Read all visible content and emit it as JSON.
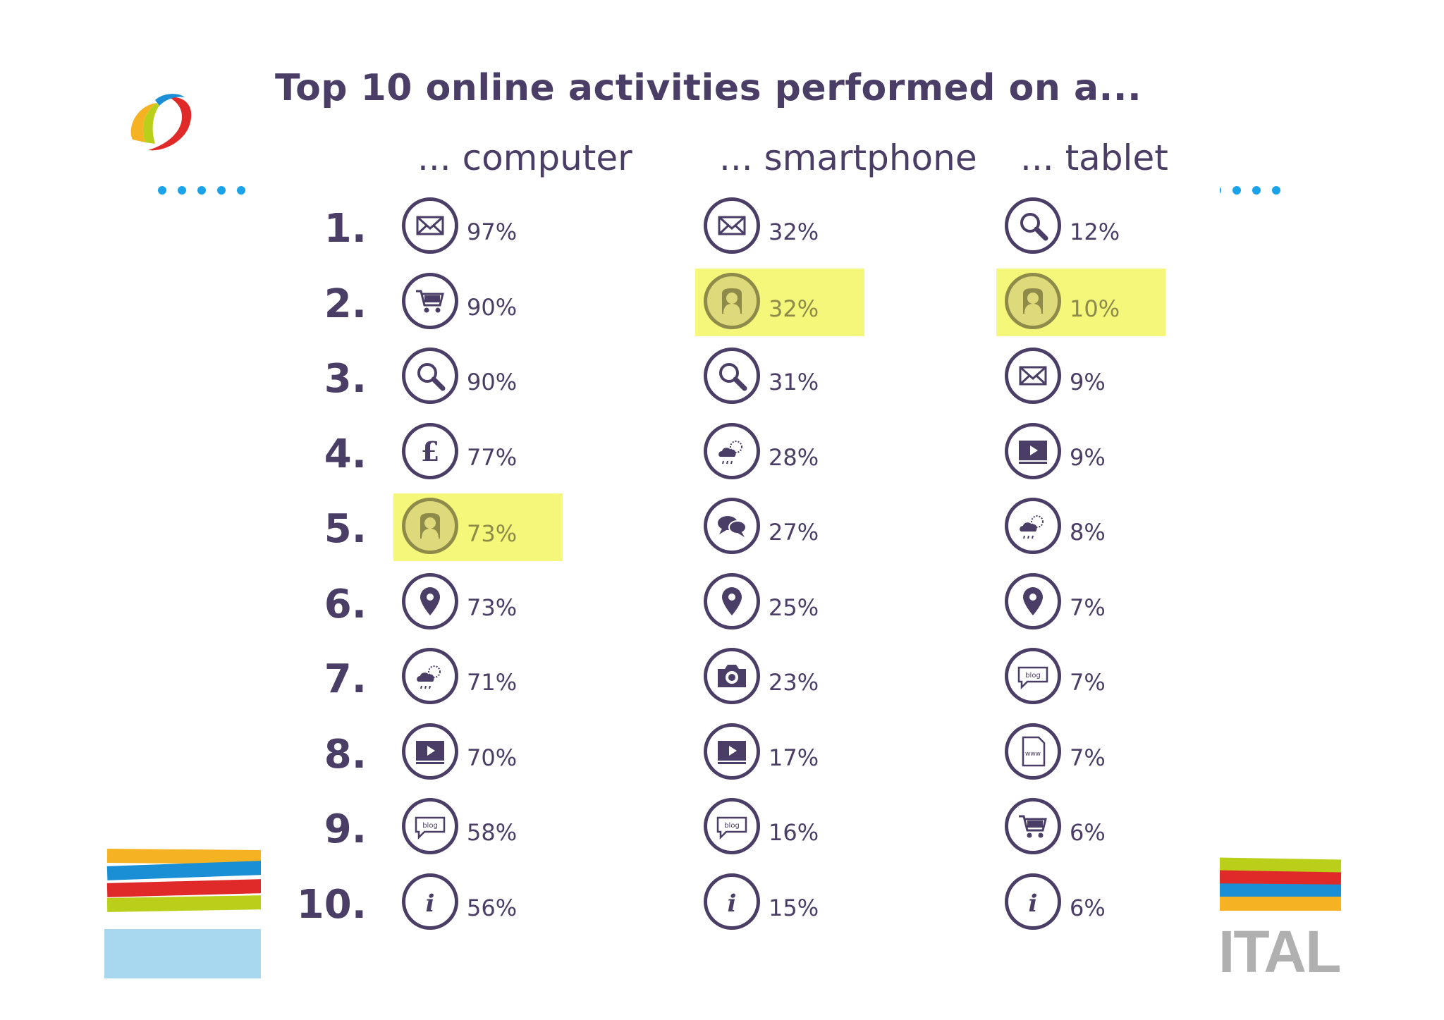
{
  "title": "Top 10 online activities performed on a...",
  "columns": [
    {
      "heading": "... computer",
      "items": [
        {
          "icon": "envelope-icon",
          "percent": "97%",
          "highlight": false
        },
        {
          "icon": "shopping-cart-icon",
          "percent": "90%",
          "highlight": false
        },
        {
          "icon": "magnifier-icon",
          "percent": "90%",
          "highlight": false
        },
        {
          "icon": "pound-sign-icon",
          "percent": "77%",
          "highlight": false
        },
        {
          "icon": "person-silhouette-icon",
          "percent": "73%",
          "highlight": true
        },
        {
          "icon": "map-pin-icon",
          "percent": "73%",
          "highlight": false
        },
        {
          "icon": "weather-icon",
          "percent": "71%",
          "highlight": false
        },
        {
          "icon": "video-play-icon",
          "percent": "70%",
          "highlight": false
        },
        {
          "icon": "blog-icon",
          "percent": "58%",
          "highlight": false
        },
        {
          "icon": "info-icon",
          "percent": "56%",
          "highlight": false
        }
      ]
    },
    {
      "heading": "... smartphone",
      "items": [
        {
          "icon": "envelope-icon",
          "percent": "32%",
          "highlight": false
        },
        {
          "icon": "person-silhouette-icon",
          "percent": "32%",
          "highlight": true
        },
        {
          "icon": "magnifier-icon",
          "percent": "31%",
          "highlight": false
        },
        {
          "icon": "weather-icon",
          "percent": "28%",
          "highlight": false
        },
        {
          "icon": "speech-bubbles-icon",
          "percent": "27%",
          "highlight": false
        },
        {
          "icon": "map-pin-icon",
          "percent": "25%",
          "highlight": false
        },
        {
          "icon": "camera-icon",
          "percent": "23%",
          "highlight": false
        },
        {
          "icon": "video-play-icon",
          "percent": "17%",
          "highlight": false
        },
        {
          "icon": "blog-icon",
          "percent": "16%",
          "highlight": false
        },
        {
          "icon": "info-icon",
          "percent": "15%",
          "highlight": false
        }
      ]
    },
    {
      "heading": "... tablet",
      "items": [
        {
          "icon": "magnifier-icon",
          "percent": "12%",
          "highlight": false
        },
        {
          "icon": "person-silhouette-icon",
          "percent": "10%",
          "highlight": true
        },
        {
          "icon": "envelope-icon",
          "percent": "9%",
          "highlight": false
        },
        {
          "icon": "video-play-icon",
          "percent": "9%",
          "highlight": false
        },
        {
          "icon": "weather-icon",
          "percent": "8%",
          "highlight": false
        },
        {
          "icon": "map-pin-icon",
          "percent": "7%",
          "highlight": false
        },
        {
          "icon": "blog-icon",
          "percent": "7%",
          "highlight": false
        },
        {
          "icon": "www-page-icon",
          "percent": "7%",
          "highlight": false
        },
        {
          "icon": "shopping-cart-icon",
          "percent": "6%",
          "highlight": false
        },
        {
          "icon": "info-icon",
          "percent": "6%",
          "highlight": false
        }
      ]
    }
  ],
  "ranks": [
    "1.",
    "2.",
    "3.",
    "4.",
    "5.",
    "6.",
    "7.",
    "8.",
    "9.",
    "10."
  ],
  "icon_labels": {
    "blog": "blog",
    "www": "www",
    "info": "i"
  },
  "watermark_text": "ITAL",
  "colors": {
    "text": "#4a3d66",
    "highlight": "#f4f77a",
    "dots": "#1aa3e8",
    "stripe_blue": "#1a8fd6",
    "stripe_red": "#e02a2a",
    "stripe_yellow": "#f5b324",
    "stripe_green": "#b9cf1a",
    "light_blue": "#a8d8f0"
  }
}
